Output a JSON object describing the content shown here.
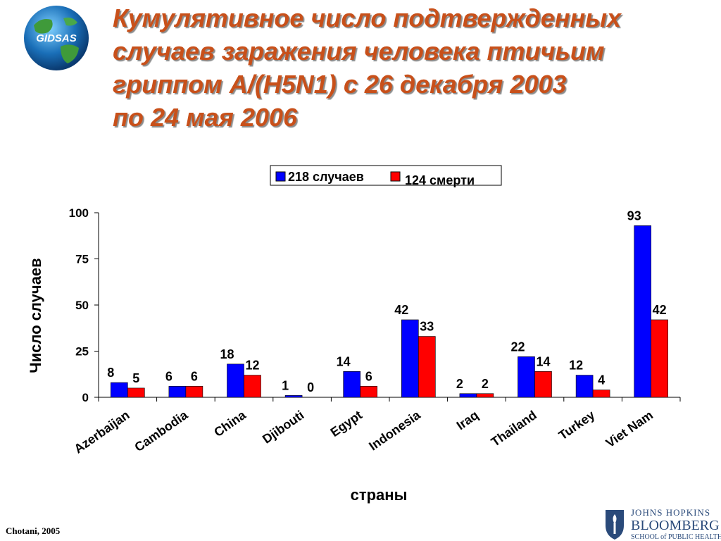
{
  "logo": {
    "text": "GIDSAS"
  },
  "title_lines": [
    "Кумулятивное число подтвержденных",
    "случаев заражения человека птичьим",
    "гриппом A/(H5N1) с 26 декабря 2003",
    "по  24 мая 2006"
  ],
  "credit": "Chotani, 2005",
  "jhu_logo": {
    "line1": "JOHNS HOPKINS",
    "line2": "BLOOMBERG",
    "line3": "SCHOOL of PUBLIC HEALTH"
  },
  "colors": {
    "title": "#c8501a",
    "cases": "#0000ff",
    "deaths": "#ff0000"
  },
  "chart_data": {
    "type": "bar",
    "title": "",
    "xlabel": "страны",
    "ylabel": "Число случаев",
    "ylim": [
      0,
      100
    ],
    "yticks": [
      0,
      25,
      50,
      75,
      100
    ],
    "grid": false,
    "legend_position": "top-center",
    "categories": [
      "Azerbaijan",
      "Cambodia",
      "China",
      "Djibouti",
      "Egypt",
      "Indonesia",
      "Iraq",
      "Thailand",
      "Turkey",
      "Viet Nam"
    ],
    "series": [
      {
        "name": "218 случаев",
        "color": "#0000ff",
        "values": [
          8,
          6,
          18,
          1,
          14,
          42,
          2,
          22,
          12,
          93
        ]
      },
      {
        "name": "124 смерти",
        "color": "#ff0000",
        "values": [
          5,
          6,
          12,
          0,
          6,
          33,
          2,
          14,
          4,
          42
        ]
      }
    ]
  }
}
